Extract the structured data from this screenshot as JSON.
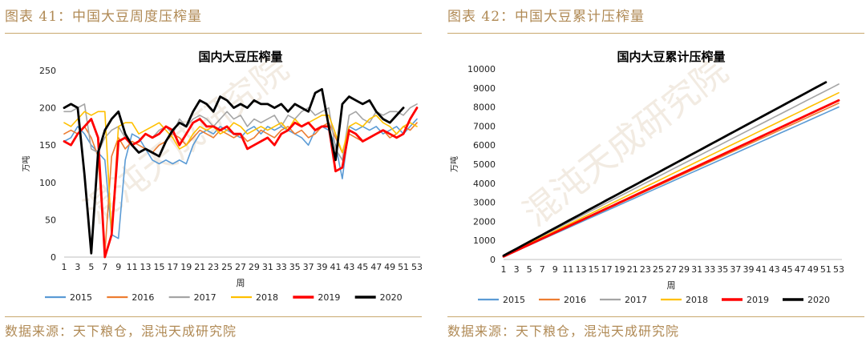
{
  "left": {
    "fig_title": "图表 41：中国大豆周度压榨量",
    "source": "数据来源：天下粮仓，混沌天成研究院"
  },
  "right": {
    "fig_title": "图表 42：中国大豆累计压榨量",
    "source": "数据来源：天下粮仓，混沌天成研究院"
  },
  "watermark": "混沌天成研究院",
  "chart_data": [
    {
      "type": "line",
      "title": "国内大豆压榨量",
      "xlabel": "周",
      "ylabel": "万吨",
      "ylim": [
        0,
        250
      ],
      "yticks": [
        0,
        50,
        100,
        150,
        200,
        250
      ],
      "xticks": [
        1,
        3,
        5,
        7,
        9,
        11,
        13,
        15,
        17,
        19,
        21,
        23,
        25,
        27,
        29,
        31,
        33,
        35,
        37,
        39,
        41,
        43,
        45,
        47,
        49,
        51,
        53
      ],
      "legend_position": "bottom",
      "series": [
        {
          "name": "2015",
          "color": "#5b9bd5",
          "width": 1.6,
          "values": [
            155,
            160,
            175,
            165,
            150,
            140,
            130,
            30,
            25,
            130,
            165,
            160,
            145,
            130,
            125,
            130,
            125,
            130,
            125,
            150,
            165,
            170,
            165,
            175,
            170,
            165,
            160,
            170,
            175,
            165,
            175,
            170,
            175,
            170,
            165,
            160,
            150,
            170,
            175,
            170,
            150,
            105,
            175,
            170,
            175,
            170,
            175,
            165,
            170,
            175,
            165,
            175,
            185
          ]
        },
        {
          "name": "2016",
          "color": "#ed7d31",
          "width": 1.6,
          "values": [
            165,
            170,
            165,
            175,
            160,
            135,
            5,
            135,
            160,
            145,
            155,
            150,
            145,
            140,
            150,
            155,
            165,
            160,
            150,
            160,
            170,
            165,
            160,
            170,
            165,
            160,
            165,
            155,
            160,
            170,
            165,
            160,
            170,
            175,
            165,
            170,
            160,
            165,
            175,
            180,
            160,
            140,
            165,
            160,
            155,
            160,
            165,
            170,
            160,
            165,
            175,
            170,
            180
          ]
        },
        {
          "name": "2017",
          "color": "#a5a5a5",
          "width": 1.6,
          "values": [
            195,
            195,
            200,
            205,
            145,
            140,
            160,
            170,
            175,
            160,
            150,
            155,
            165,
            160,
            170,
            175,
            165,
            185,
            175,
            185,
            190,
            185,
            175,
            185,
            195,
            185,
            190,
            175,
            185,
            180,
            185,
            190,
            175,
            190,
            185,
            195,
            200,
            190,
            195,
            200,
            145,
            130,
            190,
            195,
            185,
            180,
            195,
            190,
            195,
            195,
            190,
            200,
            205
          ]
        },
        {
          "name": "2018",
          "color": "#ffc000",
          "width": 1.6,
          "values": [
            180,
            175,
            185,
            195,
            190,
            195,
            195,
            30,
            175,
            180,
            180,
            165,
            170,
            175,
            180,
            170,
            160,
            145,
            150,
            165,
            175,
            170,
            175,
            165,
            170,
            180,
            175,
            165,
            170,
            175,
            170,
            175,
            180,
            170,
            185,
            175,
            180,
            185,
            190,
            190,
            165,
            140,
            175,
            180,
            175,
            185,
            190,
            180,
            175,
            165,
            175,
            180,
            175
          ]
        },
        {
          "name": "2019",
          "color": "#ff0000",
          "width": 2.8,
          "values": [
            155,
            150,
            165,
            175,
            185,
            160,
            0,
            30,
            155,
            160,
            150,
            155,
            165,
            160,
            165,
            175,
            170,
            150,
            165,
            180,
            185,
            175,
            175,
            170,
            175,
            165,
            165,
            145,
            150,
            155,
            160,
            150,
            165,
            170,
            180,
            175,
            180,
            170,
            175,
            175,
            115,
            120,
            170,
            165,
            155,
            160,
            165,
            170,
            165,
            160,
            165,
            185,
            200
          ]
        },
        {
          "name": "2020",
          "color": "#000000",
          "width": 2.8,
          "values": [
            200,
            205,
            200,
            110,
            5,
            140,
            170,
            185,
            195,
            165,
            150,
            140,
            145,
            140,
            135,
            155,
            170,
            180,
            175,
            195,
            210,
            205,
            195,
            215,
            210,
            200,
            205,
            200,
            210,
            205,
            205,
            200,
            205,
            195,
            205,
            200,
            195,
            220,
            225,
            175,
            130,
            205,
            215,
            210,
            205,
            210,
            195,
            185,
            180,
            190,
            200,
            null,
            null
          ]
        }
      ]
    },
    {
      "type": "line",
      "title": "国内大豆累计压榨量",
      "xlabel": "周",
      "ylabel": "万吨",
      "ylim": [
        0,
        10000
      ],
      "yticks": [
        0,
        1000,
        2000,
        3000,
        4000,
        5000,
        6000,
        7000,
        8000,
        9000,
        10000
      ],
      "xticks": [
        1,
        3,
        5,
        7,
        9,
        11,
        13,
        15,
        17,
        19,
        21,
        23,
        25,
        27,
        29,
        31,
        33,
        35,
        37,
        39,
        41,
        43,
        45,
        47,
        49,
        51,
        53
      ],
      "legend_position": "bottom",
      "series": [
        {
          "name": "2015",
          "color": "#5b9bd5",
          "width": 1.6,
          "start": 150,
          "end": 8000,
          "weeks": 53
        },
        {
          "name": "2016",
          "color": "#ed7d31",
          "width": 1.6,
          "start": 170,
          "end": 8200,
          "weeks": 53
        },
        {
          "name": "2017",
          "color": "#a5a5a5",
          "width": 1.6,
          "start": 200,
          "end": 9200,
          "weeks": 53
        },
        {
          "name": "2018",
          "color": "#ffc000",
          "width": 1.6,
          "start": 180,
          "end": 8750,
          "weeks": 53
        },
        {
          "name": "2019",
          "color": "#ff0000",
          "width": 2.8,
          "start": 155,
          "end": 8350,
          "weeks": 53
        },
        {
          "name": "2020",
          "color": "#000000",
          "width": 2.8,
          "start": 200,
          "end": 9300,
          "weeks": 51
        }
      ]
    }
  ]
}
